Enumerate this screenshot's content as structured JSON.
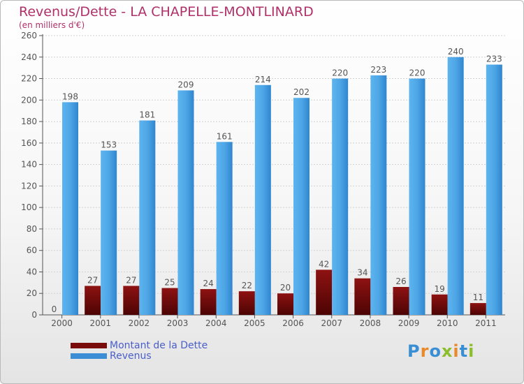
{
  "title": "Revenus/Dette - LA CHAPELLE-MONTLINARD",
  "subtitle": "(en milliers d'€)",
  "brand": "Proxiti",
  "colors": {
    "dette": "#7a0b0b",
    "revenus": "#3b8ed6",
    "title": "#b0306a",
    "legend_text": "#4a5ec8"
  },
  "chart_data": {
    "type": "bar",
    "categories": [
      "2000",
      "2001",
      "2002",
      "2003",
      "2004",
      "2005",
      "2006",
      "2007",
      "2008",
      "2009",
      "2010",
      "2011"
    ],
    "series": [
      {
        "name": "Montant de la Dette",
        "values": [
          0,
          27,
          27,
          25,
          24,
          22,
          20,
          42,
          34,
          26,
          19,
          11
        ]
      },
      {
        "name": "Revenus",
        "values": [
          198,
          153,
          181,
          209,
          161,
          214,
          202,
          220,
          223,
          220,
          240,
          233
        ]
      }
    ],
    "title": "Revenus/Dette - LA CHAPELLE-MONTLINARD",
    "xlabel": "",
    "ylabel": "",
    "ylim": [
      0,
      260
    ],
    "yticks": [
      0,
      20,
      40,
      60,
      80,
      100,
      120,
      140,
      160,
      180,
      200,
      220,
      240,
      260
    ],
    "grid": true,
    "legend_position": "bottom-left"
  }
}
